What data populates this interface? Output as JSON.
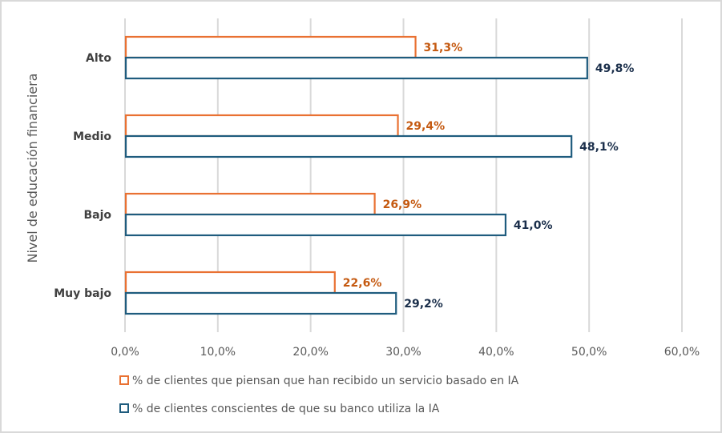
{
  "chart_data": {
    "type": "bar",
    "orientation": "horizontal",
    "title": "",
    "xlabel": "",
    "ylabel": "Nivel de educación financiera",
    "categories": [
      "Alto",
      "Medio",
      "Bajo",
      "Muy bajo"
    ],
    "series": [
      {
        "name": "% de clientes que piensan que han recibido un servicio basado en IA",
        "color": "#E97132",
        "label_color": "#C55A11",
        "values": [
          31.3,
          29.4,
          26.9,
          22.6
        ],
        "labels": [
          "31,3%",
          "29,4%",
          "26,9%",
          "22,6%"
        ]
      },
      {
        "name": "% de clientes conscientes de que su banco utiliza la IA",
        "color": "#1F5C7E",
        "label_color": "#1B2F4B",
        "values": [
          49.8,
          48.1,
          41.0,
          29.2
        ],
        "labels": [
          "49,8%",
          "48,1%",
          "41,0%",
          "29,2%"
        ]
      }
    ],
    "xlim": [
      0,
      60
    ],
    "xticks": [
      0,
      10,
      20,
      30,
      40,
      50,
      60
    ],
    "xtick_labels": [
      "0,0%",
      "10,0%",
      "20,0%",
      "30,0%",
      "40,0%",
      "50,0%",
      "60,0%"
    ],
    "grid": true,
    "legend_position": "bottom",
    "bar_style": "outline"
  }
}
